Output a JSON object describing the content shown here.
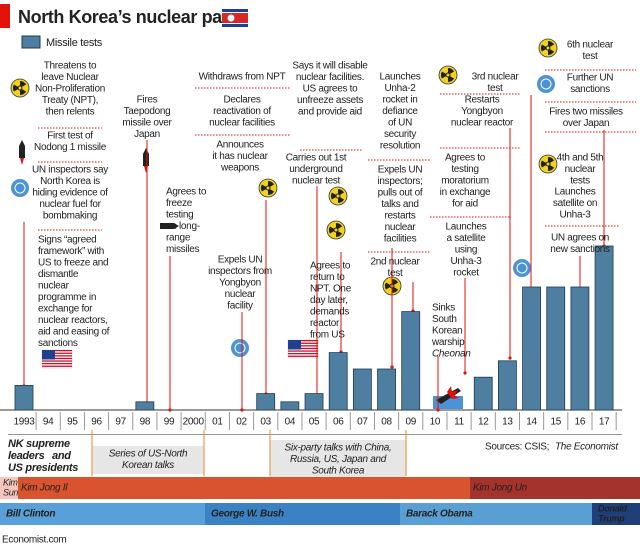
{
  "title": "North Korea’s nuclear path",
  "chart_data": {
    "type": "bar",
    "legend": "Missile tests",
    "color": "#4f7fa0",
    "categories": [
      "1993",
      "94",
      "95",
      "96",
      "97",
      "98",
      "99",
      "2000",
      "01",
      "02",
      "03",
      "04",
      "05",
      "06",
      "07",
      "08",
      "09",
      "10",
      "11",
      "12",
      "13",
      "14",
      "15",
      "16",
      "17"
    ],
    "values": [
      3,
      0,
      0,
      0,
      0,
      1,
      0,
      0,
      0,
      0,
      2,
      1,
      2,
      7,
      5,
      5,
      12,
      0,
      0,
      4,
      6,
      15,
      15,
      15,
      20
    ],
    "ylim": [
      0,
      20
    ]
  },
  "events": [
    {
      "lines": [
        "Threatens to",
        "leave Nuclear",
        "Non-Proliferation",
        "Treaty (NPT),",
        "then relents"
      ]
    },
    {
      "lines": [
        "First test of",
        "Nodong 1 missile"
      ]
    },
    {
      "lines": [
        "UN inspectors say",
        "North Korea is",
        "hiding evidence of",
        "nuclear fuel for",
        "bombmaking"
      ]
    },
    {
      "lines": [
        "Signs “agreed",
        "framework” with",
        "US to freeze and",
        "dismantle",
        "nuclear",
        "programme in",
        "exchange for",
        "nuclear reactors,",
        "aid and easing of",
        "sanctions"
      ]
    },
    {
      "lines": [
        "Fires",
        "Taepodong",
        "missile over",
        "Japan"
      ]
    },
    {
      "lines": [
        "Agrees to",
        "freeze",
        "testing",
        "on long-",
        "range",
        "missiles"
      ]
    },
    {
      "lines": [
        "Withdraws from NPT"
      ]
    },
    {
      "lines": [
        "Declares",
        "reactivation of",
        "nuclear facilities"
      ]
    },
    {
      "lines": [
        "Announces",
        "it has nuclear",
        "weapons"
      ]
    },
    {
      "lines": [
        "Expels UN",
        "inspectors from",
        "Yongbyon",
        "nuclear",
        "facility"
      ]
    },
    {
      "lines": [
        "Says it will disable",
        "nuclear facilities.",
        "US agrees to",
        "unfreeze assets",
        "and provide aid"
      ]
    },
    {
      "lines": [
        "Carries out 1st",
        "underground",
        "nuclear test"
      ]
    },
    {
      "lines": [
        "Agrees to",
        "return to",
        "NPT. One",
        "day later,",
        "demands",
        "reactor",
        "from US"
      ]
    },
    {
      "lines": [
        "Launches",
        "Unha-2",
        "rocket in",
        "defiance",
        "of UN",
        "security",
        "resolution"
      ]
    },
    {
      "lines": [
        "Expels UN",
        "inspectors;",
        "pulls out of",
        "talks and",
        "restarts",
        "nuclear",
        "facilities"
      ]
    },
    {
      "lines": [
        "2nd nuclear",
        "test"
      ]
    },
    {
      "lines": [
        "Sinks",
        "South",
        "Korean",
        "warship",
        "Cheonan"
      ]
    },
    {
      "lines": [
        "3rd nuclear",
        "test"
      ]
    },
    {
      "lines": [
        "Restarts",
        "Yongbyon",
        "nuclear reactor"
      ]
    },
    {
      "lines": [
        "Agrees to",
        "testing",
        "moratorium",
        "in exchange",
        "for aid"
      ]
    },
    {
      "lines": [
        "Launches",
        "a satellite",
        "using",
        "Unha-3",
        "rocket"
      ]
    },
    {
      "lines": [
        "6th nuclear",
        "test"
      ]
    },
    {
      "lines": [
        "Further UN",
        "sanctions"
      ]
    },
    {
      "lines": [
        "Fires two missiles",
        "over Japan"
      ]
    },
    {
      "lines": [
        "4th and 5th",
        "nuclear",
        "tests"
      ]
    },
    {
      "lines": [
        "Launches",
        "satellite on",
        "Unha-3"
      ]
    },
    {
      "lines": [
        "UN agrees on",
        "new sanctions"
      ]
    }
  ],
  "leaders_legend": {
    "leaders": [
      "NK supreme",
      "leaders"
    ],
    "and": "and",
    "presidents": "US presidents"
  },
  "talks": [
    {
      "lines": [
        "Series of US-North",
        "Korean talks"
      ]
    },
    {
      "lines": [
        "Six-party talks with China,",
        "Russia, US, Japan and",
        "South Korea"
      ]
    }
  ],
  "sources": {
    "label": "Sources: CSIS;",
    "outlet": "The Economist"
  },
  "leaders": [
    {
      "lines": [
        "Kim Il",
        "Sung"
      ]
    },
    {
      "lines": [
        "Kim Jong Il"
      ]
    },
    {
      "lines": [
        "Kim Jong Un"
      ]
    }
  ],
  "presidents": [
    {
      "lines": [
        "Bill Clinton"
      ]
    },
    {
      "lines": [
        "George W. Bush"
      ]
    },
    {
      "lines": [
        "Barack Obama"
      ]
    },
    {
      "lines": [
        "Donald",
        "Trump"
      ]
    }
  ],
  "footer": "Economist.com"
}
